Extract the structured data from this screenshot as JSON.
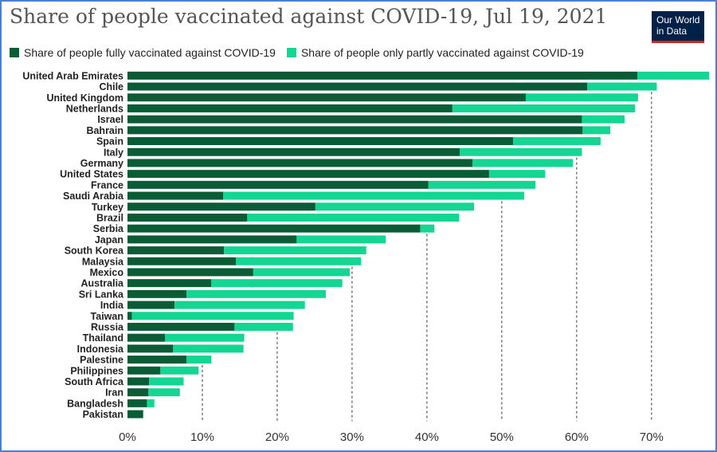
{
  "brand": {
    "line1": "Our World",
    "line2": "in Data"
  },
  "colors": {
    "full": "#0a5c36",
    "partial": "#13d693",
    "grid": "#333333"
  },
  "chart_data": {
    "type": "bar",
    "orientation": "horizontal",
    "stacked": true,
    "title": "Share of people vaccinated against COVID-19, Jul 19, 2021",
    "legend_position": "top",
    "xlim": [
      0,
      78
    ],
    "x_ticks": [
      "0%",
      "10%",
      "20%",
      "30%",
      "40%",
      "50%",
      "60%",
      "70%"
    ],
    "x_tick_values": [
      0,
      10,
      20,
      30,
      40,
      50,
      60,
      70
    ],
    "categories": [
      "United Arab Emirates",
      "Chile",
      "United Kingdom",
      "Netherlands",
      "Israel",
      "Bahrain",
      "Spain",
      "Italy",
      "Germany",
      "United States",
      "France",
      "Saudi Arabia",
      "Turkey",
      "Brazil",
      "Serbia",
      "Japan",
      "South Korea",
      "Malaysia",
      "Mexico",
      "Australia",
      "Sri Lanka",
      "India",
      "Taiwan",
      "Russia",
      "Thailand",
      "Indonesia",
      "Palestine",
      "Philippines",
      "South Africa",
      "Iran",
      "Bangladesh",
      "Pakistan"
    ],
    "series": [
      {
        "name": "Share of people fully vaccinated against COVID-19",
        "values": [
          68.1,
          61.4,
          53.2,
          43.4,
          60.7,
          60.8,
          51.5,
          44.4,
          46.1,
          48.3,
          40.2,
          12.8,
          25.1,
          16.0,
          39.1,
          22.6,
          12.9,
          14.5,
          16.8,
          11.2,
          7.9,
          6.3,
          0.6,
          14.3,
          5.0,
          6.1,
          7.9,
          4.4,
          2.9,
          2.8,
          2.6,
          2.1
        ]
      },
      {
        "name": "Share of people only partly vaccinated against COVID-19",
        "values": [
          9.6,
          9.3,
          15.0,
          24.4,
          5.7,
          3.7,
          11.7,
          16.3,
          13.4,
          7.5,
          14.3,
          40.2,
          21.2,
          28.3,
          1.9,
          11.9,
          19.0,
          16.7,
          12.9,
          17.5,
          18.6,
          17.4,
          21.6,
          7.8,
          10.6,
          9.4,
          3.3,
          5.1,
          4.6,
          4.2,
          1.0,
          0.0
        ]
      }
    ]
  }
}
